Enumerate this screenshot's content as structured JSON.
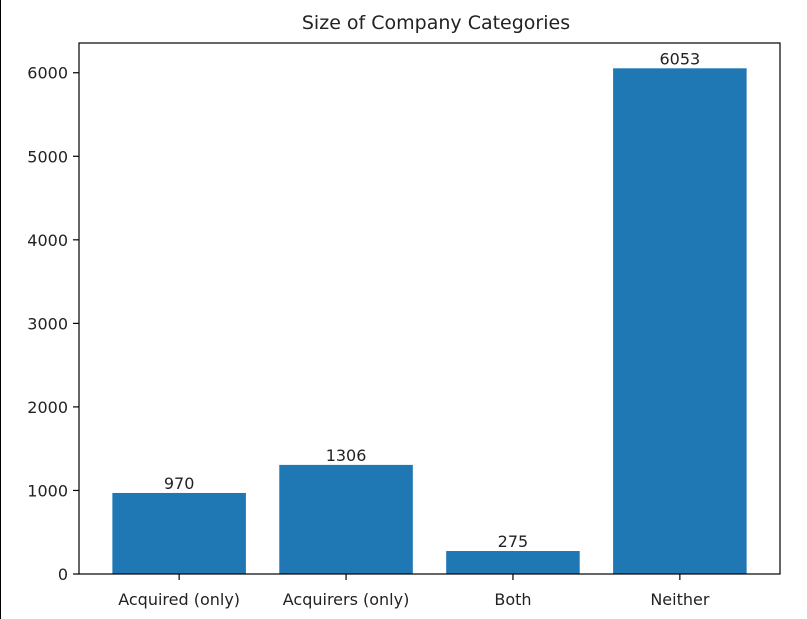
{
  "chart_data": {
    "type": "bar",
    "title": "Size of Company Categories",
    "xlabel": "",
    "ylabel": "",
    "categories": [
      "Acquired (only)",
      "Acquirers (only)",
      "Both",
      "Neither"
    ],
    "values": [
      970,
      1306,
      275,
      6053
    ],
    "data_labels": [
      "970",
      "1306",
      "275",
      "6053"
    ],
    "y_ticks": [
      0,
      1000,
      2000,
      3000,
      4000,
      5000,
      6000
    ],
    "y_tick_labels": [
      "0",
      "1000",
      "2000",
      "3000",
      "4000",
      "5000",
      "6000"
    ],
    "ylim": [
      0,
      6356
    ],
    "bar_color": "#1f77b4",
    "grid": false,
    "legend": "none"
  }
}
